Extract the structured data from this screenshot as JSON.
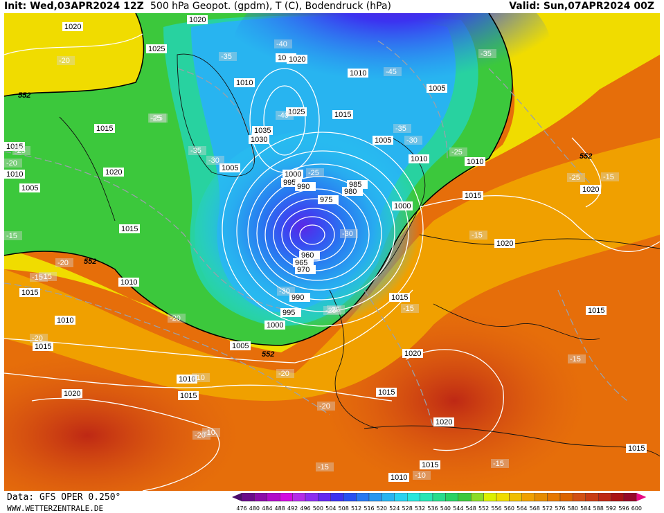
{
  "header": {
    "init": "Init: Wed,03APR2024 12Z",
    "title": "500 hPa Geopot. (gpdm), T (C), Bodendruck (hPa)",
    "valid": "Valid: Sun,07APR2024 00Z"
  },
  "footer": {
    "data_source": "Data: GFS OPER 0.250°",
    "website": "WWW.WETTERZENTRALE.DE"
  },
  "scale": {
    "ticks": [
      "476",
      "480",
      "484",
      "488",
      "492",
      "496",
      "500",
      "504",
      "508",
      "512",
      "516",
      "520",
      "524",
      "528",
      "532",
      "536",
      "540",
      "544",
      "548",
      "552",
      "556",
      "560",
      "564",
      "568",
      "572",
      "576",
      "580",
      "584",
      "588",
      "592",
      "596",
      "600"
    ],
    "colors": [
      "#4b0c6b",
      "#6a0c8a",
      "#8b0ca8",
      "#b00cc8",
      "#d20ce0",
      "#b42ee8",
      "#8c2ef0",
      "#6428f0",
      "#3c32f0",
      "#2850f0",
      "#2878f0",
      "#2896f0",
      "#28b4f0",
      "#28d2f0",
      "#28e6dc",
      "#28e6b4",
      "#28dc8c",
      "#28d264",
      "#3cc83c",
      "#8cdc28",
      "#dcf000",
      "#f0dc00",
      "#f0be00",
      "#f0a000",
      "#e68c00",
      "#e67800",
      "#dc6400",
      "#d25014",
      "#c83c14",
      "#be2814",
      "#aa1414",
      "#960a28",
      "#e60a82"
    ]
  },
  "map_labels": {
    "pressure": [
      "1020",
      "1025",
      "1010",
      "1010",
      "1005",
      "1015",
      "1035",
      "1030",
      "1025",
      "1020",
      "1015",
      "1010",
      "1005",
      "1000",
      "995",
      "990",
      "985",
      "980",
      "975",
      "960",
      "965",
      "970",
      "990",
      "995",
      "1000",
      "1005",
      "1010",
      "1015",
      "1020",
      "1015",
      "1020",
      "1015",
      "1010",
      "1015",
      "1020",
      "1005",
      "1000",
      "1010",
      "1015",
      "1020",
      "1010",
      "1015",
      "1010",
      "1005",
      "1015",
      "1020",
      "1015",
      "1020",
      "1010",
      "1015",
      "1020",
      "1015",
      "1010",
      "1015"
    ],
    "temperature": [
      "-20",
      "-25",
      "-35",
      "-25",
      "-30",
      "-35",
      "-40",
      "-40",
      "-45",
      "-35",
      "-30",
      "-25",
      "-20",
      "-25",
      "-30",
      "-35",
      "-25",
      "-15",
      "-20",
      "-15",
      "-20",
      "-25",
      "-20",
      "-15",
      "-20",
      "-15",
      "-10",
      "-15",
      "-10",
      "-15",
      "-25",
      "-15",
      "-20",
      "-30",
      "-20",
      "-25",
      "-15",
      "-10",
      "-15"
    ],
    "geopotential": [
      "552",
      "552",
      "552",
      "552",
      "552"
    ]
  }
}
